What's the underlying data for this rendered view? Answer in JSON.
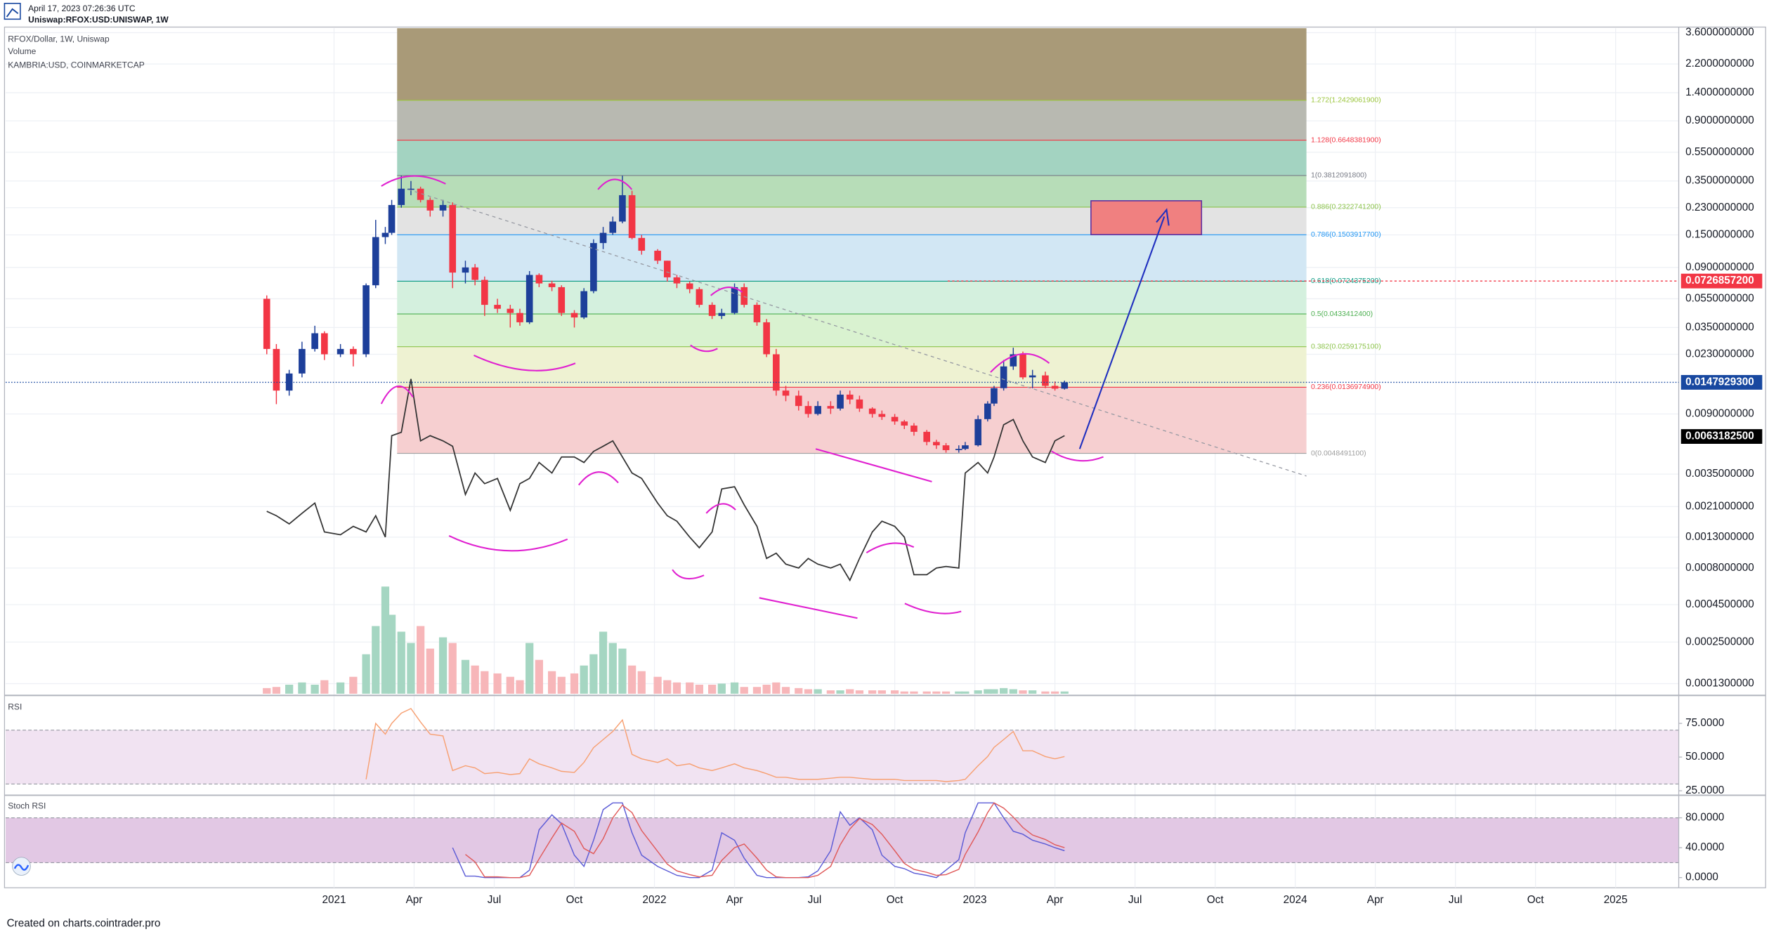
{
  "header": {
    "timestamp": "April 17, 2023 07:26:36 UTC",
    "symbol": "Uniswap:RFOX:USD:UNISWAP, 1W"
  },
  "footer": "Created on charts.cointrader.pro",
  "chart_data": [
    {
      "type": "candlestick",
      "title": "RFOX/Dollar, 1W, Uniswap",
      "up_color": "#1d3f9a",
      "down_color": "#f23645",
      "x": [
        2020.79,
        2020.82,
        2020.86,
        2020.9,
        2020.94,
        2020.97,
        2021.02,
        2021.06,
        2021.1,
        2021.13,
        2021.16,
        2021.18,
        2021.21,
        2021.24,
        2021.27,
        2021.3,
        2021.34,
        2021.37,
        2021.41,
        2021.44,
        2021.47,
        2021.51,
        2021.55,
        2021.58,
        2021.61,
        2021.64,
        2021.68,
        2021.71,
        2021.75,
        2021.78,
        2021.81,
        2021.84,
        2021.87,
        2021.9,
        2021.93,
        2021.96,
        2022.01,
        2022.04,
        2022.07,
        2022.11,
        2022.14,
        2022.18,
        2022.21,
        2022.25,
        2022.28,
        2022.32,
        2022.35,
        2022.38,
        2022.41,
        2022.45,
        2022.48,
        2022.51,
        2022.55,
        2022.58,
        2022.61,
        2022.64,
        2022.68,
        2022.71,
        2022.75,
        2022.78,
        2022.81,
        2022.85,
        2022.88,
        2022.91,
        2022.95,
        2022.97,
        2023.01,
        2023.04,
        2023.06,
        2023.09,
        2023.12,
        2023.15,
        2023.18,
        2023.22,
        2023.25,
        2023.28
      ],
      "open": [
        0.055,
        0.025,
        0.013,
        0.017,
        0.025,
        0.032,
        0.023,
        0.025,
        0.023,
        0.068,
        0.145,
        0.155,
        0.24,
        0.31,
        0.31,
        0.26,
        0.22,
        0.24,
        0.083,
        0.09,
        0.074,
        0.05,
        0.047,
        0.044,
        0.038,
        0.08,
        0.07,
        0.066,
        0.044,
        0.041,
        0.062,
        0.132,
        0.155,
        0.185,
        0.28,
        0.143,
        0.117,
        0.1,
        0.077,
        0.07,
        0.064,
        0.05,
        0.042,
        0.044,
        0.066,
        0.05,
        0.038,
        0.023,
        0.013,
        0.012,
        0.0102,
        0.009,
        0.0102,
        0.0098,
        0.0122,
        0.0113,
        0.0098,
        0.009,
        0.0086,
        0.008,
        0.0075,
        0.0068,
        0.0058,
        0.0055,
        0.0051,
        0.0052,
        0.0055,
        0.0083,
        0.0106,
        0.0135,
        0.019,
        0.023,
        0.016,
        0.0165,
        0.014,
        0.0134
      ],
      "high": [
        0.058,
        0.027,
        0.018,
        0.028,
        0.036,
        0.033,
        0.027,
        0.026,
        0.07,
        0.19,
        0.17,
        0.26,
        0.38,
        0.35,
        0.32,
        0.27,
        0.26,
        0.25,
        0.1,
        0.095,
        0.078,
        0.055,
        0.05,
        0.047,
        0.085,
        0.082,
        0.073,
        0.068,
        0.046,
        0.065,
        0.14,
        0.17,
        0.2,
        0.38,
        0.3,
        0.15,
        0.12,
        0.1,
        0.08,
        0.072,
        0.066,
        0.052,
        0.047,
        0.07,
        0.07,
        0.052,
        0.04,
        0.025,
        0.014,
        0.013,
        0.011,
        0.011,
        0.011,
        0.013,
        0.013,
        0.012,
        0.01,
        0.0095,
        0.009,
        0.0082,
        0.0078,
        0.007,
        0.006,
        0.0057,
        0.0055,
        0.0058,
        0.0088,
        0.011,
        0.014,
        0.021,
        0.0255,
        0.024,
        0.018,
        0.0175,
        0.015,
        0.0152
      ],
      "low": [
        0.023,
        0.0105,
        0.012,
        0.016,
        0.024,
        0.021,
        0.022,
        0.019,
        0.022,
        0.065,
        0.13,
        0.15,
        0.23,
        0.28,
        0.25,
        0.2,
        0.2,
        0.065,
        0.07,
        0.068,
        0.042,
        0.044,
        0.035,
        0.036,
        0.037,
        0.066,
        0.062,
        0.042,
        0.035,
        0.04,
        0.06,
        0.12,
        0.15,
        0.18,
        0.14,
        0.11,
        0.095,
        0.072,
        0.065,
        0.06,
        0.048,
        0.04,
        0.04,
        0.043,
        0.048,
        0.036,
        0.022,
        0.012,
        0.011,
        0.0095,
        0.0085,
        0.0088,
        0.009,
        0.0095,
        0.0105,
        0.0093,
        0.0085,
        0.0082,
        0.0076,
        0.0071,
        0.0064,
        0.0055,
        0.0052,
        0.0049,
        0.0049,
        0.0051,
        0.0054,
        0.008,
        0.0102,
        0.013,
        0.018,
        0.0155,
        0.0135,
        0.0135,
        0.013,
        0.0132
      ],
      "close": [
        0.025,
        0.013,
        0.017,
        0.025,
        0.032,
        0.023,
        0.025,
        0.023,
        0.068,
        0.145,
        0.155,
        0.24,
        0.31,
        0.31,
        0.26,
        0.22,
        0.24,
        0.083,
        0.09,
        0.074,
        0.05,
        0.047,
        0.044,
        0.038,
        0.08,
        0.07,
        0.066,
        0.044,
        0.041,
        0.062,
        0.132,
        0.155,
        0.185,
        0.28,
        0.143,
        0.117,
        0.1,
        0.077,
        0.07,
        0.064,
        0.05,
        0.042,
        0.044,
        0.066,
        0.05,
        0.038,
        0.023,
        0.013,
        0.012,
        0.0102,
        0.009,
        0.0102,
        0.0098,
        0.0122,
        0.0113,
        0.0098,
        0.009,
        0.0086,
        0.008,
        0.0075,
        0.0068,
        0.0058,
        0.0055,
        0.0051,
        0.0052,
        0.0055,
        0.0083,
        0.0106,
        0.0135,
        0.019,
        0.023,
        0.016,
        0.0165,
        0.014,
        0.0134,
        0.0148
      ],
      "volume": {
        "name": "Volume",
        "up_color": "#a5d6c2",
        "down_color": "#f7b6b9",
        "values": [
          5,
          6,
          8,
          10,
          8,
          12,
          10,
          15,
          35,
          60,
          95,
          70,
          55,
          45,
          60,
          40,
          50,
          45,
          30,
          25,
          20,
          18,
          15,
          12,
          45,
          30,
          20,
          15,
          18,
          25,
          35,
          55,
          45,
          40,
          25,
          20,
          15,
          12,
          10,
          10,
          8,
          8,
          9,
          10,
          6,
          6,
          8,
          10,
          6,
          5,
          4,
          4,
          3,
          3,
          4,
          3,
          3,
          3,
          3,
          2,
          2,
          2,
          2,
          2,
          2,
          2,
          3,
          4,
          4,
          5,
          4,
          3,
          3,
          2,
          2,
          2
        ]
      },
      "overlay": {
        "name": "KAMBRIA:USD, COINMARKETCAP",
        "color": "#333333",
        "values": [
          0.00195,
          0.00182,
          0.0016,
          0.00189,
          0.00222,
          0.00141,
          0.00135,
          0.00154,
          0.00141,
          0.00182,
          0.0013,
          0.0064,
          0.00675,
          0.0156,
          0.0059,
          0.0064,
          0.0059,
          0.00542,
          0.00254,
          0.00356,
          0.00301,
          0.00327,
          0.00198,
          0.00301,
          0.00327,
          0.0042,
          0.00356,
          0.00458,
          0.00458,
          0.0042,
          0.005,
          0.00542,
          0.0059,
          0.00458,
          0.00356,
          0.00327,
          0.00222,
          0.00182,
          0.00167,
          0.0013,
          0.0011,
          0.00141,
          0.00277,
          0.00287,
          0.00216,
          0.00154,
          0.00093,
          0.00101,
          0.00085,
          0.0008,
          0.00093,
          0.00085,
          0.0008,
          0.00085,
          0.00066,
          0.00093,
          0.00141,
          0.00167,
          0.00154,
          0.0013,
          0.00072,
          0.00072,
          0.0008,
          0.00082,
          0.0008,
          0.00356,
          0.0042,
          0.00356,
          0.00458,
          0.0076,
          0.00825,
          0.0059,
          0.00458,
          0.0042,
          0.0059,
          0.0064
        ]
      },
      "log_scale": true,
      "grid": true,
      "ylim": [
        0.000111,
        3.86
      ],
      "yticks": [
        {
          "value": 3.6,
          "label": "3.6000000000"
        },
        {
          "value": 2.2,
          "label": "2.2000000000"
        },
        {
          "value": 1.4,
          "label": "1.4000000000"
        },
        {
          "value": 0.9,
          "label": "0.9000000000"
        },
        {
          "value": 0.55,
          "label": "0.5500000000"
        },
        {
          "value": 0.35,
          "label": "0.3500000000"
        },
        {
          "value": 0.23,
          "label": "0.2300000000"
        },
        {
          "value": 0.15,
          "label": "0.1500000000"
        },
        {
          "value": 0.09,
          "label": "0.0900000000"
        },
        {
          "value": 0.055,
          "label": "0.0550000000"
        },
        {
          "value": 0.035,
          "label": "0.0350000000"
        },
        {
          "value": 0.023,
          "label": "0.0230000000"
        },
        {
          "value": 0.009,
          "label": "0.0090000000"
        },
        {
          "value": 0.0035,
          "label": "0.0035000000"
        },
        {
          "value": 0.0021,
          "label": "0.0021000000"
        },
        {
          "value": 0.0013,
          "label": "0.0013000000"
        },
        {
          "value": 0.0008,
          "label": "0.0008000000"
        },
        {
          "value": 0.00045,
          "label": "0.0004500000"
        },
        {
          "value": 0.00025,
          "label": "0.0002500000"
        },
        {
          "value": 0.00013,
          "label": "0.0001300000"
        }
      ],
      "xlim": [
        2019.975,
        2025.197
      ],
      "xticks": [
        2021,
        {
          "value": 2021.25,
          "label": "Apr"
        },
        {
          "value": 2021.5,
          "label": "Jul"
        },
        {
          "value": 2021.75,
          "label": "Oct"
        },
        2022,
        {
          "value": 2022.25,
          "label": "Apr"
        },
        {
          "value": 2022.5,
          "label": "Jul"
        },
        {
          "value": 2022.75,
          "label": "Oct"
        },
        2023,
        {
          "value": 2023.25,
          "label": "Apr"
        },
        {
          "value": 2023.5,
          "label": "Jul"
        },
        {
          "value": 2023.75,
          "label": "Oct"
        },
        2024,
        {
          "value": 2024.25,
          "label": "Apr"
        },
        {
          "value": 2024.5,
          "label": "Jul"
        },
        {
          "value": 2024.75,
          "label": "Oct"
        },
        2025
      ],
      "fib_levels": [
        {
          "label": "0(0.0048491100)",
          "value": 0.00484911,
          "color": "#9e9e9e",
          "fill": "#f6cfd0"
        },
        {
          "label": "0.236(0.0136974900)",
          "value": 0.01369749,
          "color": "#f23645",
          "fill": "#eef2d2"
        },
        {
          "label": "0.382(0.0259175100)",
          "value": 0.02591751,
          "color": "#8bc34a",
          "fill": "#d9f2d0"
        },
        {
          "label": "0.5(0.0433412400)",
          "value": 0.04334124,
          "color": "#4caf50",
          "fill": "#d4f0de"
        },
        {
          "label": "0.618(0.0724375200)",
          "value": 0.07243752,
          "color": "#089981",
          "fill": "#d2e7f4"
        },
        {
          "label": "0.786(0.1503917700)",
          "value": 0.15039177,
          "color": "#2196f3",
          "fill": "#e3e3e3"
        },
        {
          "label": "0.886(0.2322741200)",
          "value": 0.23227412,
          "color": "#8bc34a",
          "fill": "#b7ddb8"
        },
        {
          "label": "1(0.3812091800)",
          "value": 0.38120918,
          "color": "#787b86",
          "fill": "#a3d3c1"
        },
        {
          "label": "1.128(0.6648381900)",
          "value": 0.66483819,
          "color": "#f23645",
          "fill": "#b8b9b1"
        },
        {
          "label": "1.272(1.2429061900)",
          "value": 1.24290619,
          "color": "#9bc53d",
          "fill": "#a99a78"
        }
      ],
      "price_labels": [
        {
          "label": "0.0726857200",
          "value": 0.07268572,
          "color": "#f23645"
        },
        {
          "label": "0.0147929300",
          "value": 0.01479293,
          "color": "#1848a0"
        },
        {
          "label": "0.0063182500",
          "value": 0.00631825,
          "color": "#000000"
        }
      ]
    },
    {
      "type": "line",
      "title": "RSI",
      "color": "#f7a072",
      "band": [
        30,
        70
      ],
      "ylim": [
        22.5,
        94.5
      ],
      "yticks": [
        {
          "value": 75,
          "label": "75.0000"
        },
        {
          "value": 50,
          "label": "50.0000"
        },
        {
          "value": 25,
          "label": "25.0000"
        }
      ],
      "values": [
        null,
        null,
        null,
        null,
        null,
        null,
        null,
        null,
        33.5,
        75,
        67,
        75,
        82.6,
        86,
        76,
        67,
        65.7,
        40,
        43.6,
        42,
        37.7,
        38.6,
        37,
        37.7,
        48.7,
        45,
        42,
        39.4,
        38.6,
        46,
        57,
        63,
        69,
        77.5,
        52,
        48.7,
        46,
        48.7,
        43.6,
        45,
        42,
        40,
        42,
        45,
        42,
        40,
        37.7,
        35,
        35,
        33.5,
        33.5,
        33.5,
        34.3,
        35,
        35,
        34.3,
        33.5,
        33.5,
        33.5,
        32.6,
        32.6,
        32.6,
        32.6,
        31.8,
        32.6,
        33.5,
        43.6,
        50.4,
        57.2,
        63,
        69,
        54.7,
        54.7,
        50.4,
        48.7,
        50.4
      ]
    },
    {
      "type": "line",
      "title": "Stoch RSI",
      "band": [
        20,
        80
      ],
      "ylim": [
        -13.6,
        108.7
      ],
      "yticks": [
        {
          "value": 80,
          "label": "80.0000"
        },
        {
          "value": 40,
          "label": "40.0000"
        },
        {
          "value": 0,
          "label": "0.0000"
        }
      ],
      "series": [
        {
          "color": "#5b5bd6",
          "values": [
            null,
            null,
            null,
            null,
            null,
            null,
            null,
            null,
            null,
            null,
            null,
            null,
            null,
            null,
            null,
            null,
            null,
            40,
            2,
            2,
            0,
            0,
            0,
            0,
            10,
            64,
            84,
            72,
            30,
            15,
            50,
            91,
            100,
            100,
            60,
            30,
            15,
            9,
            3,
            0,
            0,
            10,
            60,
            50,
            26,
            3,
            0,
            0,
            0,
            0,
            1,
            9,
            36,
            88,
            70,
            80,
            64,
            30,
            15,
            12,
            6,
            3,
            0,
            10,
            24,
            60,
            100,
            100,
            100,
            80,
            62,
            58,
            50,
            45,
            40,
            36
          ]
        },
        {
          "color": "#e05a5a",
          "values": [
            null,
            null,
            null,
            null,
            null,
            null,
            null,
            null,
            null,
            null,
            null,
            null,
            null,
            null,
            null,
            null,
            null,
            null,
            31,
            21,
            1,
            1,
            0,
            0,
            3,
            25,
            53,
            73,
            62,
            39,
            32,
            52,
            80,
            97,
            87,
            63,
            35,
            18,
            9,
            4,
            1,
            3,
            23,
            40,
            45,
            26,
            10,
            1,
            0,
            0,
            0,
            3,
            15,
            44,
            65,
            79,
            71,
            58,
            36,
            19,
            11,
            7,
            3,
            4,
            11,
            31,
            61,
            87,
            100,
            93,
            81,
            67,
            57,
            51,
            44,
            40
          ]
        }
      ]
    }
  ]
}
